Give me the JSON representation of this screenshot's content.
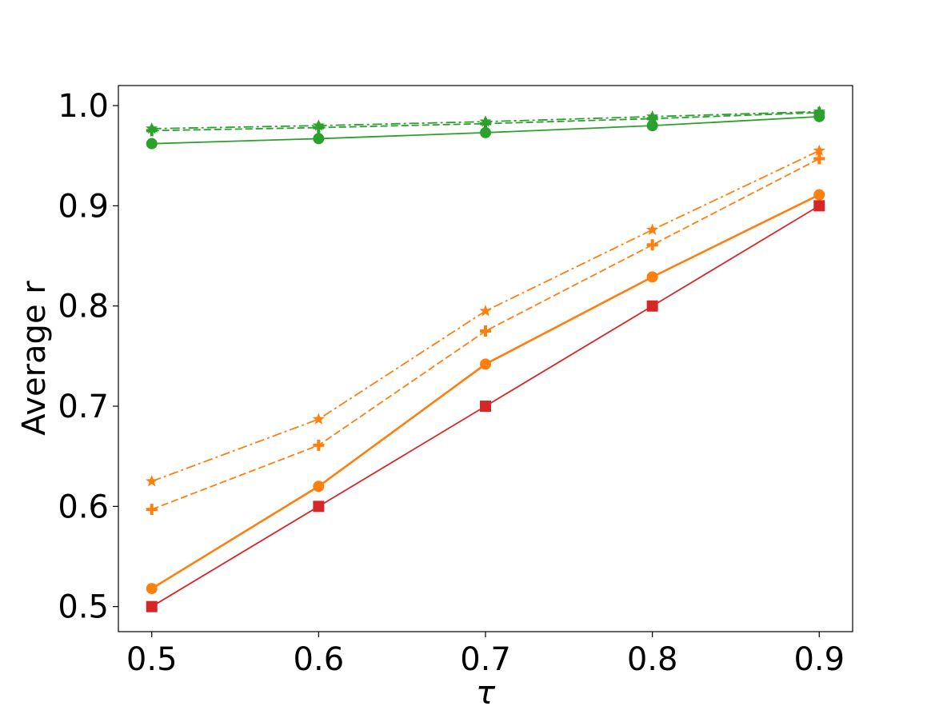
{
  "chart_data": {
    "type": "line",
    "xlabel": "τ",
    "ylabel": "Average r",
    "x": [
      0.5,
      0.6,
      0.7,
      0.8,
      0.9
    ],
    "x_ticks": [
      "0.5",
      "0.6",
      "0.7",
      "0.8",
      "0.9"
    ],
    "y_ticks": [
      "0.5",
      "0.6",
      "0.7",
      "0.8",
      "0.9",
      "1.0"
    ],
    "xlim": [
      0.48,
      0.92
    ],
    "ylim": [
      0.475,
      1.02
    ],
    "grid": false,
    "legend": "none",
    "series": [
      {
        "color": "#2ca02c",
        "linestyle": "solid",
        "marker": "circle",
        "values": [
          0.962,
          0.967,
          0.973,
          0.98,
          0.989
        ]
      },
      {
        "color": "#2ca02c",
        "linestyle": "dashed",
        "marker": "plus",
        "values": [
          0.975,
          0.978,
          0.982,
          0.987,
          0.993
        ]
      },
      {
        "color": "#2ca02c",
        "linestyle": "dashdot",
        "marker": "star",
        "values": [
          0.977,
          0.98,
          0.984,
          0.989,
          0.994
        ]
      },
      {
        "color": "#ff7f0e",
        "linestyle": "solid",
        "marker": "circle",
        "values": [
          0.518,
          0.62,
          0.742,
          0.829,
          0.911
        ]
      },
      {
        "color": "#ff7f0e",
        "linestyle": "dashed",
        "marker": "plus",
        "values": [
          0.597,
          0.661,
          0.775,
          0.861,
          0.947
        ]
      },
      {
        "color": "#ff7f0e",
        "linestyle": "dashdot",
        "marker": "star",
        "values": [
          0.625,
          0.687,
          0.795,
          0.876,
          0.955
        ]
      },
      {
        "color": "#d62728",
        "linestyle": "solid",
        "marker": "square",
        "values": [
          0.5,
          0.6,
          0.7,
          0.8,
          0.9
        ]
      }
    ]
  }
}
